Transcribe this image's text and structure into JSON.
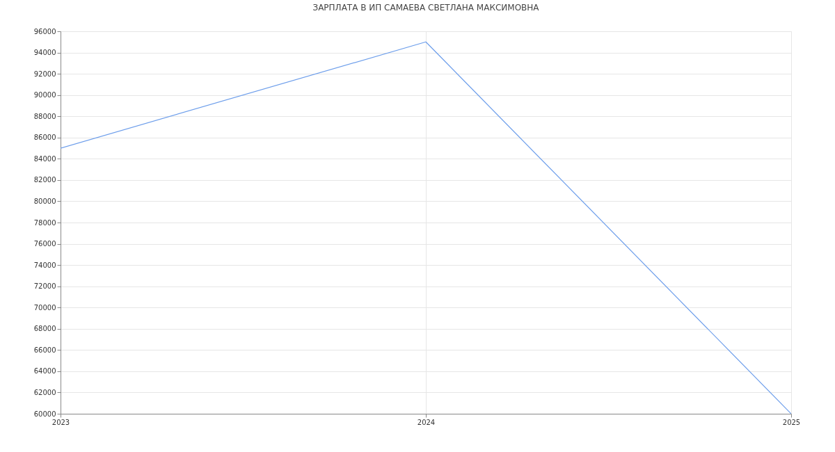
{
  "chart_data": {
    "type": "line",
    "title": "ЗАРПЛАТА В ИП САМАЕВА СВЕТЛАНА МАКСИМОВНА",
    "x": [
      2023,
      2024,
      2025
    ],
    "series": [
      {
        "color": "#6d9eeb",
        "values": [
          85000,
          95000,
          60000
        ]
      }
    ],
    "xlim": [
      2023,
      2025
    ],
    "xticks": [
      2023,
      2024,
      2025
    ],
    "ylim": [
      60000,
      96000
    ],
    "yticks": [
      60000,
      62000,
      64000,
      66000,
      68000,
      70000,
      72000,
      74000,
      76000,
      78000,
      80000,
      82000,
      84000,
      86000,
      88000,
      90000,
      92000,
      94000,
      96000
    ],
    "grid": true,
    "marker": "none",
    "line_style": "solid"
  }
}
